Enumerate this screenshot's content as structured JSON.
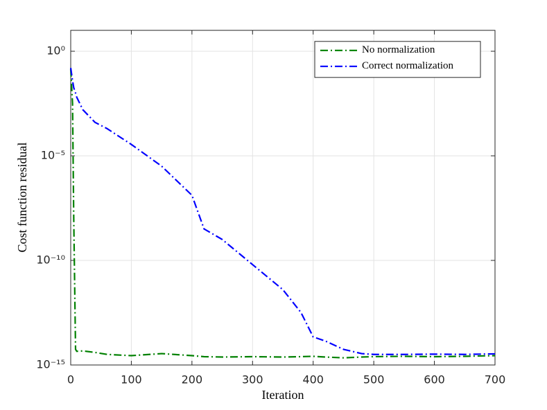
{
  "chart_data": {
    "type": "line",
    "xlabel": "Iteration",
    "ylabel": "Cost function residual",
    "x": [
      0,
      3,
      5,
      8,
      10,
      20,
      40,
      60,
      100,
      150,
      200,
      220,
      250,
      300,
      350,
      380,
      400,
      420,
      450,
      480,
      500,
      550,
      600,
      650,
      700
    ],
    "series": [
      {
        "name": "No normalization",
        "color": "#008000",
        "linestyle": "-.",
        "values": [
          0.14,
          0.0032,
          1e-08,
          5.6e-15,
          4.5e-15,
          4.7e-15,
          4e-15,
          3.2e-15,
          2.8e-15,
          3.5e-15,
          2.8e-15,
          2.5e-15,
          2.4e-15,
          2.5e-15,
          2.4e-15,
          2.5e-15,
          2.6e-15,
          2.4e-15,
          2.2e-15,
          2.4e-15,
          2.5e-15,
          2.6e-15,
          2.5e-15,
          2.6e-15,
          2.8e-15
        ]
      },
      {
        "name": "Correct normalization",
        "color": "#0000ff",
        "linestyle": "-.",
        "values": [
          0.16,
          0.04,
          0.018,
          0.01,
          0.0063,
          0.0016,
          0.0004,
          0.0002,
          3.5e-05,
          3.2e-06,
          1.3e-07,
          3.2e-09,
          1e-09,
          6.3e-11,
          4e-12,
          3.2e-13,
          2.2e-14,
          1.4e-14,
          5.6e-15,
          3.5e-15,
          3.2e-15,
          3.2e-15,
          3.3e-15,
          3.2e-15,
          3.4e-15
        ]
      }
    ],
    "xlim": [
      0,
      700
    ],
    "xticks": [
      0,
      100,
      200,
      300,
      400,
      500,
      600,
      700
    ],
    "ylim": [
      1e-15,
      10
    ],
    "yscale": "log",
    "yticks": [
      {
        "value": 1e-15,
        "label": "10⁻¹⁵"
      },
      {
        "value": 1e-10,
        "label": "10⁻¹⁰"
      },
      {
        "value": 1e-05,
        "label": "10⁻⁵"
      },
      {
        "value": 1,
        "label": "10⁰"
      }
    ],
    "grid": true,
    "legend": "upper right"
  }
}
